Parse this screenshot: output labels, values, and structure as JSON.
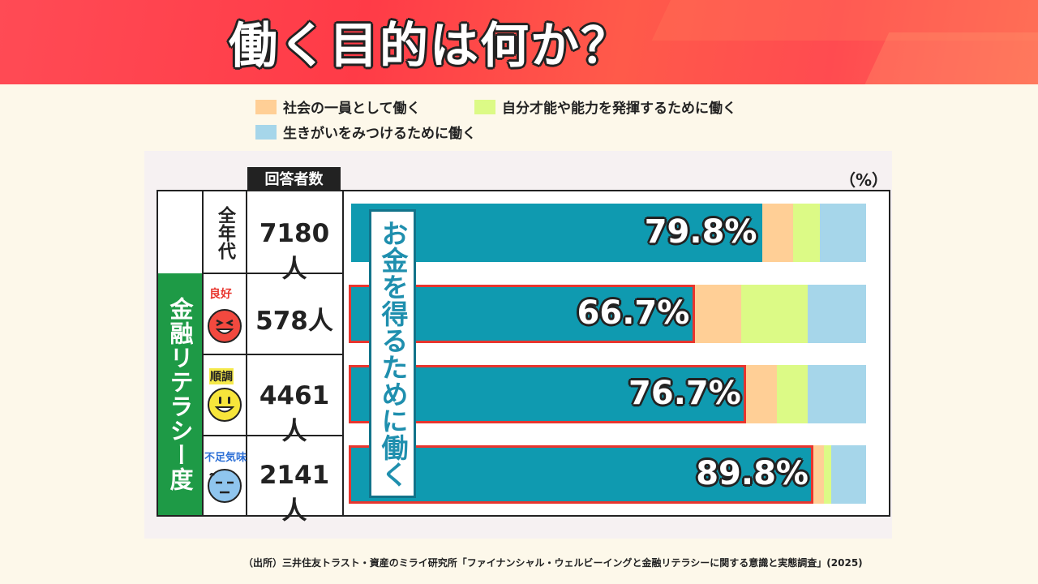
{
  "title": "働く目的は何か？",
  "colors": {
    "money": "#0f9ab0",
    "society": "#ffcf96",
    "talent": "#dcfa86",
    "purpose": "#a6d6ea",
    "highlight": "#e8352e",
    "literacy_band": "#1e9a46"
  },
  "legend": [
    {
      "label": "社会の一員として働く",
      "color": "#ffcf96"
    },
    {
      "label": "自分才能や能力を発揮するために働く",
      "color": "#dcfa86"
    },
    {
      "label": "生きがいをみつけるために働く",
      "color": "#a6d6ea"
    }
  ],
  "unit_label": "（%）",
  "count_header": "回答者数",
  "side_label": "金融リテラシー度",
  "annotation": "お金を得るために働く",
  "chart_data": {
    "type": "bar",
    "orientation": "horizontal",
    "stacked": true,
    "categories": [
      "全年代",
      "良好",
      "順調",
      "不足気味"
    ],
    "respondents": [
      "7180人",
      "578人",
      "4461人",
      "2141人"
    ],
    "series": [
      {
        "name": "お金を得るために働く",
        "values": [
          79.8,
          66.7,
          76.7,
          89.8
        ],
        "labels": [
          "79.8%",
          "66.7%",
          "76.7%",
          "89.8%"
        ]
      },
      {
        "name": "社会の一員として働く",
        "values": [
          6.0,
          9.0,
          6.0,
          2.0
        ]
      },
      {
        "name": "自分才能や能力を発揮するために働く",
        "values": [
          5.3,
          13.0,
          6.0,
          1.4
        ]
      },
      {
        "name": "生きがいをみつけるために働く",
        "values": [
          8.9,
          11.3,
          11.3,
          6.8
        ]
      }
    ],
    "xlim": [
      0,
      100
    ]
  },
  "source": "（出所）三井住友トラスト・資産のミライ研究所「ファイナンシャル・ウェルビーイングと金融リテラシーに関する意識と実態調査」(2025)"
}
